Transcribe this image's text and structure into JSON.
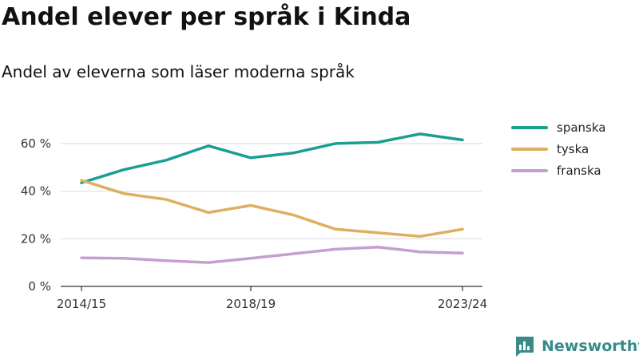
{
  "header": {
    "title": "Andel elever per språk i Kinda",
    "subtitle": "Andel av eleverna som läser moderna språk"
  },
  "brand": {
    "name": "Newsworthy",
    "icon": "newsworthy-logo-icon",
    "color": "#3a8a8a"
  },
  "chart_data": {
    "type": "line",
    "x": [
      "2014/15",
      "2015/16",
      "2016/17",
      "2017/18",
      "2018/19",
      "2019/20",
      "2020/21",
      "2021/22",
      "2022/23",
      "2023/24"
    ],
    "xticks": [
      "2014/15",
      "2018/19",
      "2023/24"
    ],
    "yticks": [
      0,
      20,
      40,
      60
    ],
    "ytick_suffix": " %",
    "ylim": [
      0,
      70
    ],
    "grid": true,
    "legend_position": "right",
    "series": [
      {
        "name": "spanska",
        "color": "#1a9e92",
        "values": [
          43.5,
          49,
          53,
          59,
          54,
          56,
          60,
          60.5,
          64,
          61.5
        ]
      },
      {
        "name": "tyska",
        "color": "#dcb060",
        "values": [
          44.5,
          39,
          36.5,
          31,
          34,
          30,
          24,
          22.5,
          21,
          24
        ]
      },
      {
        "name": "franska",
        "color": "#c59fd0",
        "values": [
          12,
          11.8,
          10.8,
          10,
          11.8,
          13.7,
          15.6,
          16.5,
          14.5,
          14
        ]
      }
    ]
  }
}
